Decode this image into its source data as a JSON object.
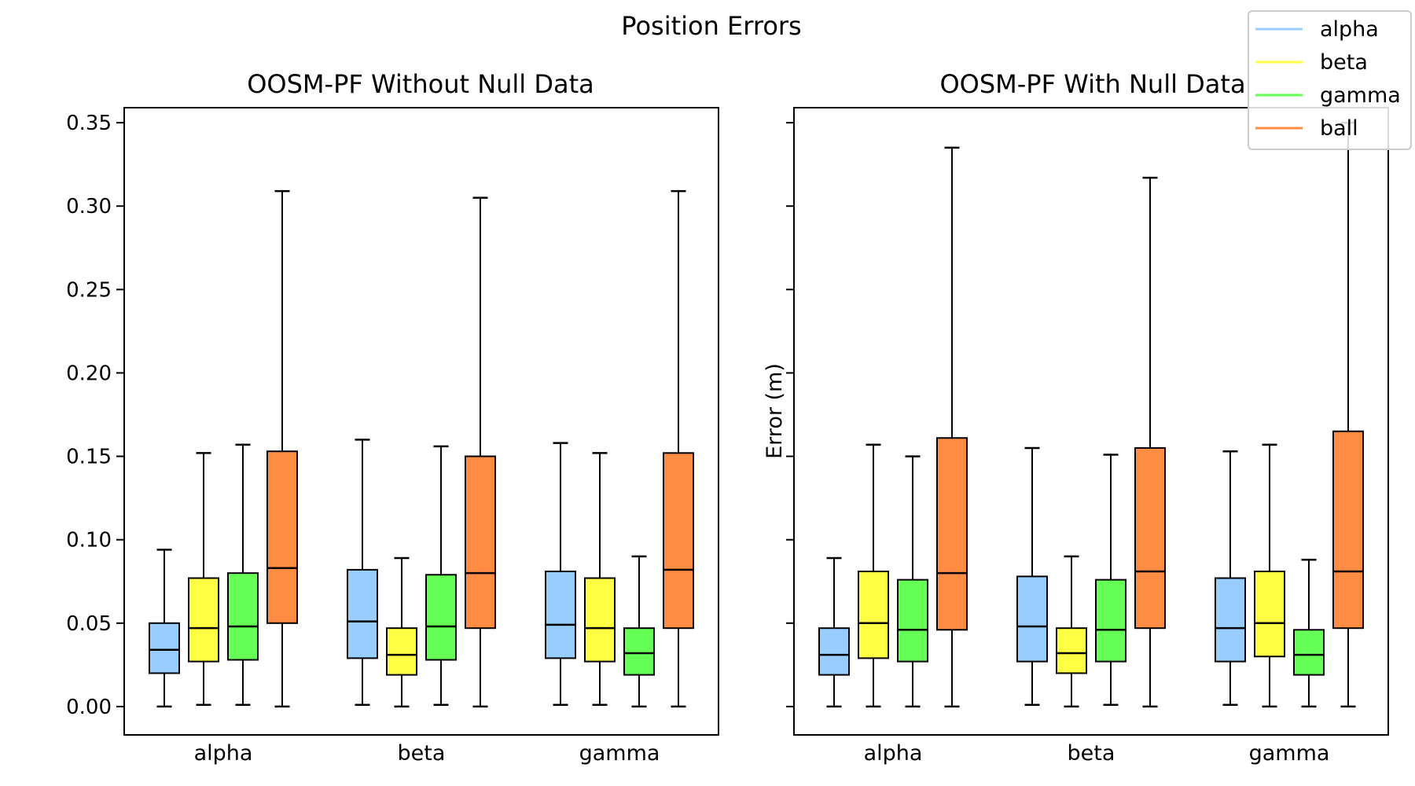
{
  "figure": {
    "suptitle": "Position Errors",
    "ylabel": "Error (m)"
  },
  "legend": {
    "placement": "top-right",
    "entries": [
      {
        "label": "alpha",
        "color": "#99ccff"
      },
      {
        "label": "beta",
        "color": "#ffff44"
      },
      {
        "label": "gamma",
        "color": "#66ff55"
      },
      {
        "label": "ball",
        "color": "#ff8c42"
      }
    ]
  },
  "chart_data": [
    {
      "type": "box",
      "title": "OOSM-PF Without Null Data",
      "xlabel": "",
      "ylabel": "",
      "categories": [
        "alpha",
        "beta",
        "gamma"
      ],
      "ylim": [
        -0.017,
        0.359
      ],
      "yticks": [
        0.0,
        0.05,
        0.1,
        0.15,
        0.2,
        0.25,
        0.3,
        0.35
      ],
      "ytick_labels": [
        "0.00",
        "0.05",
        "0.10",
        "0.15",
        "0.20",
        "0.25",
        "0.30",
        "0.35"
      ],
      "grid": false,
      "series": [
        {
          "name": "alpha",
          "color": "#99ccff",
          "boxes": [
            {
              "whislo": 0.0,
              "q1": 0.02,
              "med": 0.034,
              "q3": 0.05,
              "whishi": 0.094
            },
            {
              "whislo": 0.001,
              "q1": 0.029,
              "med": 0.051,
              "q3": 0.082,
              "whishi": 0.16
            },
            {
              "whislo": 0.001,
              "q1": 0.029,
              "med": 0.049,
              "q3": 0.081,
              "whishi": 0.158
            }
          ]
        },
        {
          "name": "beta",
          "color": "#ffff44",
          "boxes": [
            {
              "whislo": 0.001,
              "q1": 0.027,
              "med": 0.047,
              "q3": 0.077,
              "whishi": 0.152
            },
            {
              "whislo": 0.0,
              "q1": 0.019,
              "med": 0.031,
              "q3": 0.047,
              "whishi": 0.089
            },
            {
              "whislo": 0.001,
              "q1": 0.027,
              "med": 0.047,
              "q3": 0.077,
              "whishi": 0.152
            }
          ]
        },
        {
          "name": "gamma",
          "color": "#66ff55",
          "boxes": [
            {
              "whislo": 0.001,
              "q1": 0.028,
              "med": 0.048,
              "q3": 0.08,
              "whishi": 0.157
            },
            {
              "whislo": 0.001,
              "q1": 0.028,
              "med": 0.048,
              "q3": 0.079,
              "whishi": 0.156
            },
            {
              "whislo": 0.0,
              "q1": 0.019,
              "med": 0.032,
              "q3": 0.047,
              "whishi": 0.09
            }
          ]
        },
        {
          "name": "ball",
          "color": "#ff8c42",
          "boxes": [
            {
              "whislo": 0.0,
              "q1": 0.05,
              "med": 0.083,
              "q3": 0.153,
              "whishi": 0.309
            },
            {
              "whislo": 0.0,
              "q1": 0.047,
              "med": 0.08,
              "q3": 0.15,
              "whishi": 0.305
            },
            {
              "whislo": 0.0,
              "q1": 0.047,
              "med": 0.082,
              "q3": 0.152,
              "whishi": 0.309
            }
          ]
        }
      ]
    },
    {
      "type": "box",
      "title": "OOSM-PF With Null Data",
      "xlabel": "",
      "ylabel": "Error (m)",
      "categories": [
        "alpha",
        "beta",
        "gamma"
      ],
      "ylim": [
        -0.017,
        0.359
      ],
      "yticks": [
        0.0,
        0.05,
        0.1,
        0.15,
        0.2,
        0.25,
        0.3,
        0.35
      ],
      "ytick_labels": [],
      "grid": false,
      "series": [
        {
          "name": "alpha",
          "color": "#99ccff",
          "boxes": [
            {
              "whislo": 0.0,
              "q1": 0.019,
              "med": 0.031,
              "q3": 0.047,
              "whishi": 0.089
            },
            {
              "whislo": 0.001,
              "q1": 0.027,
              "med": 0.048,
              "q3": 0.078,
              "whishi": 0.155
            },
            {
              "whislo": 0.001,
              "q1": 0.027,
              "med": 0.047,
              "q3": 0.077,
              "whishi": 0.153
            }
          ]
        },
        {
          "name": "beta",
          "color": "#ffff44",
          "boxes": [
            {
              "whislo": 0.0,
              "q1": 0.029,
              "med": 0.05,
              "q3": 0.081,
              "whishi": 0.157
            },
            {
              "whislo": 0.0,
              "q1": 0.02,
              "med": 0.032,
              "q3": 0.047,
              "whishi": 0.09
            },
            {
              "whislo": 0.0,
              "q1": 0.03,
              "med": 0.05,
              "q3": 0.081,
              "whishi": 0.157
            }
          ]
        },
        {
          "name": "gamma",
          "color": "#66ff55",
          "boxes": [
            {
              "whislo": 0.0,
              "q1": 0.027,
              "med": 0.046,
              "q3": 0.076,
              "whishi": 0.15
            },
            {
              "whislo": 0.001,
              "q1": 0.027,
              "med": 0.046,
              "q3": 0.076,
              "whishi": 0.151
            },
            {
              "whislo": 0.0,
              "q1": 0.019,
              "med": 0.031,
              "q3": 0.046,
              "whishi": 0.088
            }
          ]
        },
        {
          "name": "ball",
          "color": "#ff8c42",
          "boxes": [
            {
              "whislo": 0.0,
              "q1": 0.046,
              "med": 0.08,
              "q3": 0.161,
              "whishi": 0.335
            },
            {
              "whislo": 0.0,
              "q1": 0.047,
              "med": 0.081,
              "q3": 0.155,
              "whishi": 0.317
            },
            {
              "whislo": 0.0,
              "q1": 0.047,
              "med": 0.081,
              "q3": 0.165,
              "whishi": 0.35
            }
          ]
        }
      ]
    }
  ]
}
